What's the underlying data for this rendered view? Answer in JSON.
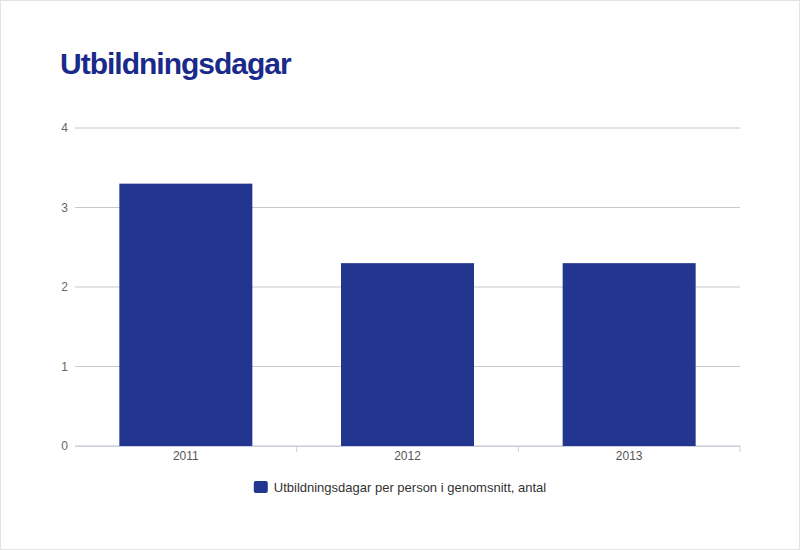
{
  "chart_data": {
    "type": "bar",
    "title": "Utbildningsdagar",
    "categories": [
      "2011",
      "2012",
      "2013"
    ],
    "series": [
      {
        "name": "Utbildningsdagar per person i genomsnitt, antal",
        "color": "#22368f",
        "values": [
          3.3,
          2.3,
          2.3
        ]
      }
    ],
    "ylim": [
      0,
      4
    ],
    "yticks": [
      0,
      1,
      2,
      3,
      4
    ],
    "grid": true,
    "legend": "bottom"
  }
}
